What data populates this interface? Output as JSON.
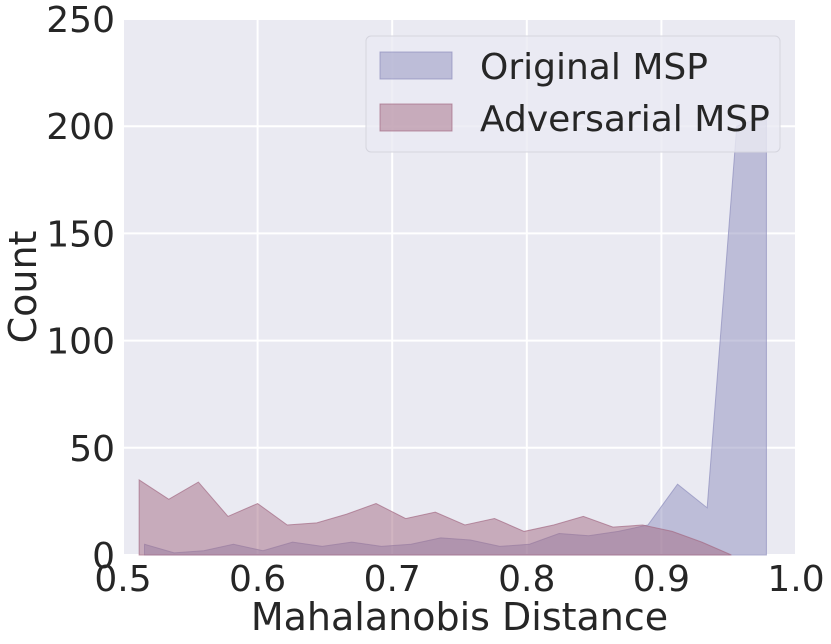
{
  "chart_data": {
    "type": "area",
    "xlabel": "Mahalanobis Distance",
    "ylabel": "Count",
    "xlim": [
      0.5,
      1.0
    ],
    "ylim": [
      0,
      250
    ],
    "xticks": [
      "0.5",
      "0.6",
      "0.7",
      "0.8",
      "0.9",
      "1.0"
    ],
    "yticks": [
      "0",
      "50",
      "100",
      "150",
      "200",
      "250"
    ],
    "grid": true,
    "legend_position": "top-right",
    "series": [
      {
        "name": "Original MSP",
        "color": "#8f8fbd",
        "x": [
          0.516,
          0.538,
          0.56,
          0.582,
          0.604,
          0.626,
          0.648,
          0.67,
          0.692,
          0.714,
          0.736,
          0.758,
          0.78,
          0.802,
          0.824,
          0.846,
          0.868,
          0.89,
          0.912,
          0.934,
          0.956,
          0.978
        ],
        "values": [
          5,
          1,
          2,
          5,
          2,
          6,
          4,
          6,
          4,
          5,
          8,
          7,
          4,
          5,
          10,
          9,
          11,
          14,
          33,
          22,
          200,
          205
        ]
      },
      {
        "name": "Adversarial MSP",
        "color": "#a46b84",
        "x": [
          0.512,
          0.534,
          0.556,
          0.578,
          0.6,
          0.622,
          0.644,
          0.666,
          0.688,
          0.71,
          0.732,
          0.754,
          0.776,
          0.798,
          0.82,
          0.842,
          0.864,
          0.886,
          0.908,
          0.93,
          0.952
        ],
        "values": [
          35,
          26,
          34,
          18,
          24,
          14,
          15,
          19,
          24,
          17,
          20,
          14,
          17,
          11,
          14,
          18,
          13,
          14,
          11,
          6,
          0
        ]
      }
    ]
  }
}
